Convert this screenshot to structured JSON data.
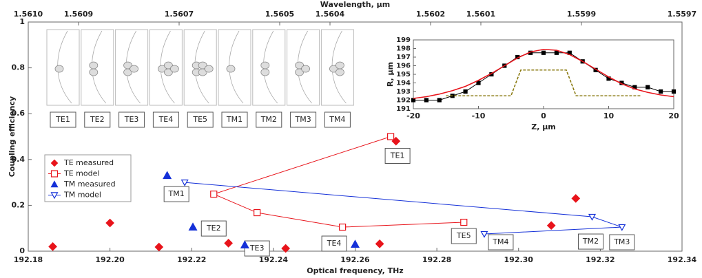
{
  "chart_data": [
    {
      "type": "scatter",
      "x_label": "Optical frequency, THz",
      "y_label": "Coupling efficiency",
      "x2_label": "Wavelength, µm",
      "xlim": [
        192.18,
        192.34
      ],
      "xticks": [
        192.18,
        {
          "value": 192.2,
          "label": "192.20"
        },
        192.22,
        192.24,
        192.26,
        192.28,
        {
          "value": 192.3,
          "label": "192.30"
        },
        192.32,
        192.34
      ],
      "ylim": [
        0,
        1
      ],
      "yticks": [
        0,
        0.2,
        0.4,
        0.6,
        0.8,
        1
      ],
      "x2lim": [
        1.561,
        1.5597
      ],
      "x2ticks": [
        {
          "value": 1.561,
          "label": "1.5610"
        },
        1.5609,
        1.5607,
        1.5605,
        1.5604,
        1.5602,
        1.5601,
        1.5599,
        1.5597
      ],
      "legend": "center left",
      "series": [
        {
          "name": "TE measured",
          "color": "#e8141b",
          "marker": "diamond",
          "filled": true,
          "line": false,
          "x": [
            192.186,
            192.2,
            192.212,
            192.229,
            192.243,
            192.266,
            192.27,
            192.308,
            192.314
          ],
          "values": [
            0.02,
            0.123,
            0.018,
            0.035,
            0.012,
            0.032,
            0.48,
            0.112,
            0.23
          ]
        },
        {
          "name": "TE model",
          "color": "#e8141b",
          "marker": "square",
          "filled": false,
          "line": true,
          "x": [
            192.2687,
            192.2254,
            192.236,
            192.2569,
            192.2866
          ],
          "values": [
            0.5,
            0.249,
            0.168,
            0.105,
            0.126
          ],
          "point_labels": [
            "TE1",
            "TE2",
            "TE3",
            "TE4",
            "TE5"
          ]
        },
        {
          "name": "TM measured",
          "color": "#1430d8",
          "marker": "triangle-up",
          "filled": true,
          "line": false,
          "x": [
            192.214,
            192.2203,
            192.233,
            192.26
          ],
          "values": [
            0.33,
            0.105,
            0.027,
            0.03
          ]
        },
        {
          "name": "TM model",
          "color": "#1430d8",
          "marker": "triangle-down",
          "filled": false,
          "line": true,
          "x": [
            192.2183,
            192.318,
            192.3253,
            192.2916
          ],
          "values": [
            0.3,
            0.15,
            0.105,
            0.075
          ],
          "point_labels": [
            "TM1",
            "TM2",
            "TM3",
            "TM4"
          ]
        }
      ]
    },
    {
      "type": "line",
      "x_label": "Z, µm",
      "y_label": "R, µm",
      "xlim": [
        -20,
        20
      ],
      "xticks": [
        -20,
        -10,
        0,
        10,
        20
      ],
      "ylim": [
        191,
        199
      ],
      "yticks": [
        191,
        192,
        193,
        194,
        195,
        196,
        197,
        198,
        199
      ],
      "series": [
        {
          "color": "#000000",
          "marker": "square",
          "dash": false,
          "x": [
            -20,
            -18,
            -16,
            -14,
            -12,
            -10,
            -8,
            -6,
            -4,
            -2,
            0,
            2,
            4,
            6,
            8,
            10,
            12,
            14,
            16,
            18,
            20
          ],
          "values": [
            192,
            192,
            192,
            192.5,
            193,
            194,
            195,
            196,
            197,
            197.5,
            197.5,
            197.5,
            197.5,
            196.5,
            195.5,
            194.5,
            194,
            193.5,
            193.5,
            193,
            193
          ]
        },
        {
          "color": "#e8141b",
          "marker": "none",
          "dash": false,
          "x": [
            -20,
            -18,
            -16,
            -14,
            -12,
            -10,
            -8,
            -6,
            -4,
            -2,
            0,
            2,
            4,
            6,
            8,
            10,
            12,
            14,
            16,
            18,
            20
          ],
          "values": [
            192.2,
            192.4,
            192.7,
            193.1,
            193.6,
            194.3,
            195.1,
            196,
            196.9,
            197.6,
            197.9,
            197.8,
            197.3,
            196.5,
            195.6,
            194.7,
            193.9,
            193.3,
            192.9,
            192.6,
            192.4
          ]
        },
        {
          "color": "#8a7a10",
          "marker": "none",
          "dash": true,
          "x": [
            -15,
            -5,
            -3.5,
            3.5,
            5,
            15
          ],
          "values": [
            192.5,
            192.5,
            195.5,
            195.5,
            192.5,
            192.5
          ]
        }
      ]
    }
  ],
  "mode_images": [
    "TE1",
    "TE2",
    "TE3",
    "TE4",
    "TE5",
    "TM1",
    "TM2",
    "TM3",
    "TM4"
  ]
}
